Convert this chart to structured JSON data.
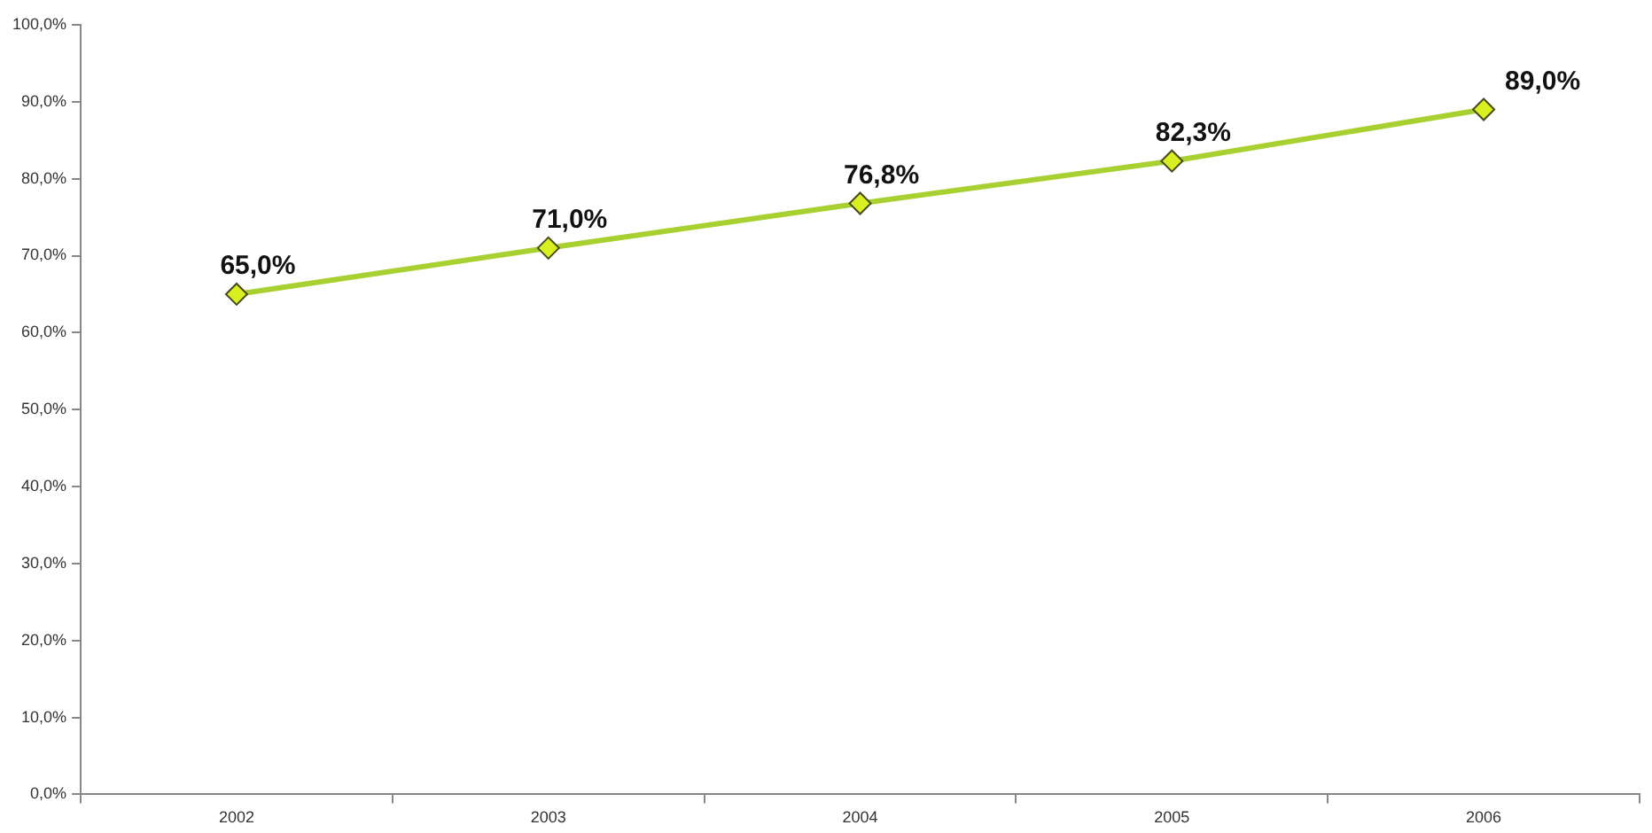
{
  "chart_data": {
    "type": "line",
    "categories": [
      "2002",
      "2003",
      "2004",
      "2005",
      "2006"
    ],
    "series": [
      {
        "color": "#a8d030",
        "values": [
          65.0,
          71.0,
          76.8,
          82.3,
          89.0
        ],
        "value_labels": [
          "65,0%",
          "71,0%",
          "76,8%",
          "82,3%",
          "89,0%"
        ]
      }
    ],
    "ylim": [
      0,
      100
    ],
    "yticks": [
      {
        "value": 0,
        "label": "0,0%"
      },
      {
        "value": 10,
        "label": "10,0%"
      },
      {
        "value": 20,
        "label": "20,0%"
      },
      {
        "value": 30,
        "label": "30,0%"
      },
      {
        "value": 40,
        "label": "40,0%"
      },
      {
        "value": 50,
        "label": "50,0%"
      },
      {
        "value": 60,
        "label": "60,0%"
      },
      {
        "value": 70,
        "label": "70,0%"
      },
      {
        "value": 80,
        "label": "80,0%"
      },
      {
        "value": 90,
        "label": "90,0%"
      },
      {
        "value": 100,
        "label": "100,0%"
      }
    ],
    "grid": false,
    "legend": false,
    "marker": "diamond",
    "line_style": "solid"
  }
}
